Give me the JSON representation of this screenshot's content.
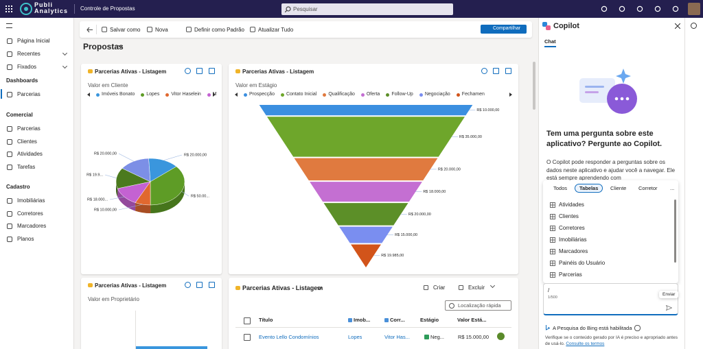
{
  "topbar": {
    "logo_lines": [
      "Publi",
      "Analytics"
    ],
    "page_title": "Controle de Propostas",
    "search_placeholder": "Pesquisar"
  },
  "nav": {
    "items": [
      "Página Inicial",
      "Recentes",
      "Fixados"
    ],
    "sections": [
      {
        "title": "Dashboards",
        "items": [
          "Parcerias"
        ]
      },
      {
        "title": "Comercial",
        "items": [
          "Parcerias",
          "Clientes",
          "Atividades",
          "Tarefas"
        ]
      },
      {
        "title": "Cadastro",
        "items": [
          "Imobiliárias",
          "Corretores",
          "Marcadores",
          "Planos"
        ]
      }
    ]
  },
  "commands": [
    "Salvar como",
    "Nova",
    "Definir como Padrão",
    "Atualizar Tudo"
  ],
  "share": "Compartilhar",
  "dashboard_title": "Propostas",
  "cards": [
    {
      "title": "Parcerias Ativas - Listagem",
      "subtitle": "Valor em Cliente",
      "chart": {
        "type": "pie",
        "legend": [
          "Imóveis Bonato",
          "Lopes",
          "Vitor Haselein",
          "M"
        ],
        "values": [
          20000,
          50000,
          10000,
          18000,
          19900,
          20000
        ],
        "value_labels": [
          "R$ 20.000,00",
          "R$ 50.00...",
          "R$ 10.000,00",
          "R$ 18.000...",
          "R$ 19.9...",
          "R$ 20.000,00"
        ],
        "colors": [
          "#3a96dd",
          "#5e9c26",
          "#e0682f",
          "#c462d2",
          "#4b7a1e",
          "#7c8fe6"
        ]
      }
    },
    {
      "title": "Parcerias Ativas - Listagem",
      "subtitle": "Valor em Estágio",
      "chart": {
        "type": "funnel",
        "categories": [
          "Prospecção",
          "Contato Inicial",
          "Qualificação",
          "Oferta",
          "Follow-Up",
          "Negociação",
          "Fechamen"
        ],
        "values": [
          10000,
          35000,
          20000,
          18000,
          20000,
          15000,
          19985
        ],
        "value_labels": [
          "R$ 10.000,00",
          "R$ 35.000,00",
          "R$ 20.000,00",
          "R$ 18.000,00",
          "R$ 20.000,00",
          "R$ 15.000,00",
          "R$ 19.985,00"
        ],
        "colors": [
          "#3b8fe0",
          "#6ea62b",
          "#e07a3f",
          "#c46fd2",
          "#5c8f28",
          "#7a8ef0",
          "#d2541a"
        ]
      }
    },
    {
      "title": "Parcerias Ativas - Listagem",
      "subtitle": "Valor em Proprietário"
    },
    {
      "title": "Parcerias Ativas - Listagem",
      "actions": [
        "Criar",
        "Excluir"
      ],
      "search": "Localização rápida",
      "table": {
        "columns": [
          "Título",
          "Imob...",
          "Corr...",
          "Estágio",
          "Valor Está..."
        ],
        "rows": [
          [
            "Evento Lello Condomínios",
            "Lopes",
            "Vitor Has...",
            "Neg...",
            "R$ 15.000,00"
          ]
        ]
      }
    }
  ],
  "copilot": {
    "title": "Copilot",
    "tab": "Chat",
    "heading": "Tem uma pergunta sobre este aplicativo? Pergunte ao Copilot.",
    "body": "O Copilot pode responder a perguntas sobre os dados neste aplicativo e ajudar você a navegar. Ele está sempre aprendendo com",
    "filters": [
      "Todos",
      "Tabelas",
      "Cliente",
      "Corretor",
      "..."
    ],
    "selected_filter": 1,
    "tables": [
      "Atividades",
      "Clientes",
      "Corretores",
      "Imobiliárias",
      "Marcadores",
      "Painéis do Usuário",
      "Parcerias"
    ],
    "input": "/",
    "counter": "1/500",
    "tooltip": "Enviar",
    "bing": "A Pesquisa do Bing está habilitada",
    "disclaimer": "Verifique se o conteúdo gerado por IA é preciso e apropriado antes de usá-lo.",
    "terms": "Consulte os termos"
  }
}
